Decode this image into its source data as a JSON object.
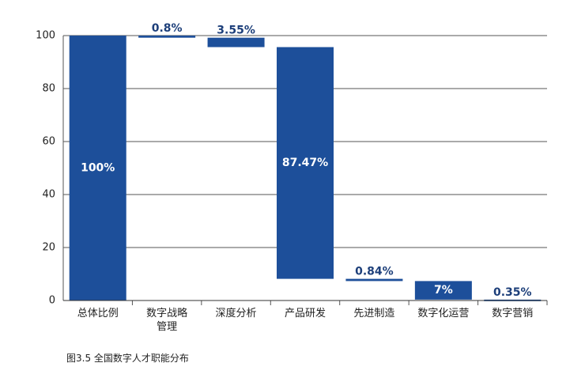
{
  "chart_data": {
    "type": "waterfall",
    "caption": "图3.5 全国数字人才职能分布",
    "categories": [
      "总体比例",
      "数字战略管理",
      "深度分析",
      "产品研发",
      "先进制造",
      "数字化运营",
      "数字营销"
    ],
    "values": [
      100,
      0.8,
      3.55,
      87.47,
      0.84,
      7,
      0.35
    ],
    "value_labels": [
      "100%",
      "0.8%",
      "3.55%",
      "87.47%",
      "0.84%",
      "7%",
      "0.35%"
    ],
    "color": "#1d4f9a",
    "ylim": [
      0,
      100
    ],
    "yticks": [
      0,
      20,
      40,
      60,
      80,
      100
    ],
    "grid": true
  }
}
